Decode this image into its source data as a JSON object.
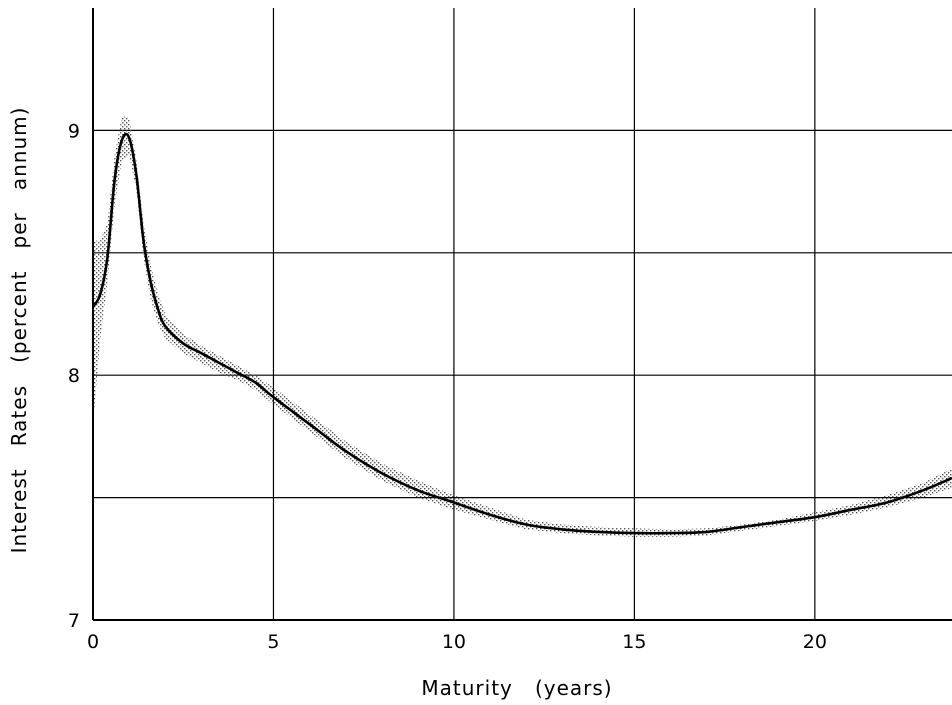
{
  "chart_data": {
    "type": "line",
    "title": "",
    "xlabel": "Maturity   (years)",
    "ylabel": "Interest   Rates   (percent   per   annum)",
    "xlim": [
      0,
      23.8
    ],
    "ylim": [
      7,
      9.5
    ],
    "x_ticks": [
      0,
      5,
      10,
      15,
      20
    ],
    "y_ticks": [
      7,
      8,
      9
    ],
    "x_tick_labels": [
      "0",
      "5",
      "10",
      "15",
      "20"
    ],
    "y_tick_labels": [
      "7",
      "8",
      "9"
    ],
    "grid": true,
    "x_gridlines": [
      0,
      5,
      10,
      15,
      20
    ],
    "y_gridlines": [
      7.5,
      8,
      8.5,
      9
    ],
    "series": [
      {
        "style": "solid",
        "color": "#000000",
        "x": [
          0,
          0.2,
          0.4,
          0.6,
          0.8,
          1.0,
          1.2,
          1.4,
          1.6,
          1.8,
          2.0,
          2.5,
          3.0,
          3.5,
          4.0,
          4.5,
          5,
          6,
          7,
          8,
          9,
          10,
          11,
          12,
          13,
          14,
          15,
          16,
          17,
          18,
          19,
          20,
          21,
          22,
          23,
          23.8
        ],
        "y": [
          8.28,
          8.33,
          8.48,
          8.8,
          8.96,
          8.97,
          8.82,
          8.55,
          8.38,
          8.27,
          8.2,
          8.13,
          8.09,
          8.05,
          8.01,
          7.97,
          7.91,
          7.8,
          7.69,
          7.6,
          7.53,
          7.48,
          7.43,
          7.39,
          7.37,
          7.36,
          7.355,
          7.355,
          7.36,
          7.38,
          7.4,
          7.42,
          7.45,
          7.48,
          7.53,
          7.58
        ]
      }
    ],
    "band": {
      "style": "stippled",
      "color": "#555555",
      "x": [
        0,
        0.2,
        0.4,
        0.6,
        0.8,
        1.0,
        1.2,
        1.4,
        1.6,
        1.8,
        2.0,
        2.5,
        3.0,
        3.5,
        4.0,
        4.5,
        5,
        6,
        7,
        8,
        9,
        10,
        11,
        12,
        13,
        14,
        15,
        16,
        17,
        18,
        19,
        20,
        21,
        22,
        23,
        23.8
      ],
      "upper": [
        8.55,
        8.55,
        8.62,
        8.9,
        9.06,
        9.05,
        8.88,
        8.62,
        8.45,
        8.33,
        8.25,
        8.17,
        8.12,
        8.08,
        8.04,
        8.0,
        7.95,
        7.84,
        7.73,
        7.64,
        7.57,
        7.51,
        7.46,
        7.41,
        7.39,
        7.38,
        7.375,
        7.37,
        7.375,
        7.39,
        7.41,
        7.44,
        7.47,
        7.51,
        7.56,
        7.62
      ],
      "lower": [
        7.8,
        8.15,
        8.38,
        8.7,
        8.88,
        8.9,
        8.76,
        8.48,
        8.31,
        8.21,
        8.15,
        8.09,
        8.05,
        8.01,
        7.98,
        7.94,
        7.88,
        7.77,
        7.66,
        7.57,
        7.5,
        7.45,
        7.41,
        7.37,
        7.355,
        7.345,
        7.34,
        7.34,
        7.345,
        7.365,
        7.385,
        7.405,
        7.43,
        7.46,
        7.5,
        7.54
      ]
    }
  }
}
